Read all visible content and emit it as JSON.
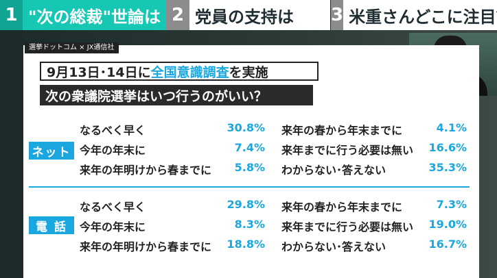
{
  "tabs": [
    {
      "number": "1",
      "label": "\"次の総裁\"世論は"
    },
    {
      "number": "2",
      "label": "党員の支持は"
    },
    {
      "number": "3",
      "label": "米重さんどこに注目？"
    }
  ],
  "source": "選挙ドットコム × JX通信社",
  "title": {
    "prefix": "9月13日･14日に",
    "highlight": "全国意識調査",
    "suffix": "を実施"
  },
  "question": "次の衆議院選挙はいつ行うのがいい？",
  "sections": [
    {
      "tag": "ネット",
      "left": [
        {
          "label": "なるべく早く",
          "value": "30.8%"
        },
        {
          "label": "今年の年末に",
          "value": "7.4%"
        },
        {
          "label": "来年の年明けから春までに",
          "value": "5.8%"
        }
      ],
      "right": [
        {
          "label": "来年の春から年末までに",
          "value": "4.1%"
        },
        {
          "label": "来年までに行う必要は無い",
          "value": "16.6%"
        },
        {
          "label": "わからない･答えない",
          "value": "35.3%"
        }
      ]
    },
    {
      "tag": "電 話",
      "left": [
        {
          "label": "なるべく早く",
          "value": "29.8%"
        },
        {
          "label": "今年の年末に",
          "value": "8.3%"
        },
        {
          "label": "来年の年明けから春までに",
          "value": "18.8%"
        }
      ],
      "right": [
        {
          "label": "来年の春から年末までに",
          "value": "7.3%"
        },
        {
          "label": "来年までに行う必要は無い",
          "value": "19.0%"
        },
        {
          "label": "わからない･答えない",
          "value": "16.7%"
        }
      ]
    }
  ],
  "colors": {
    "accent": "#1aa7e0",
    "active_tab": "#16c7b4"
  }
}
